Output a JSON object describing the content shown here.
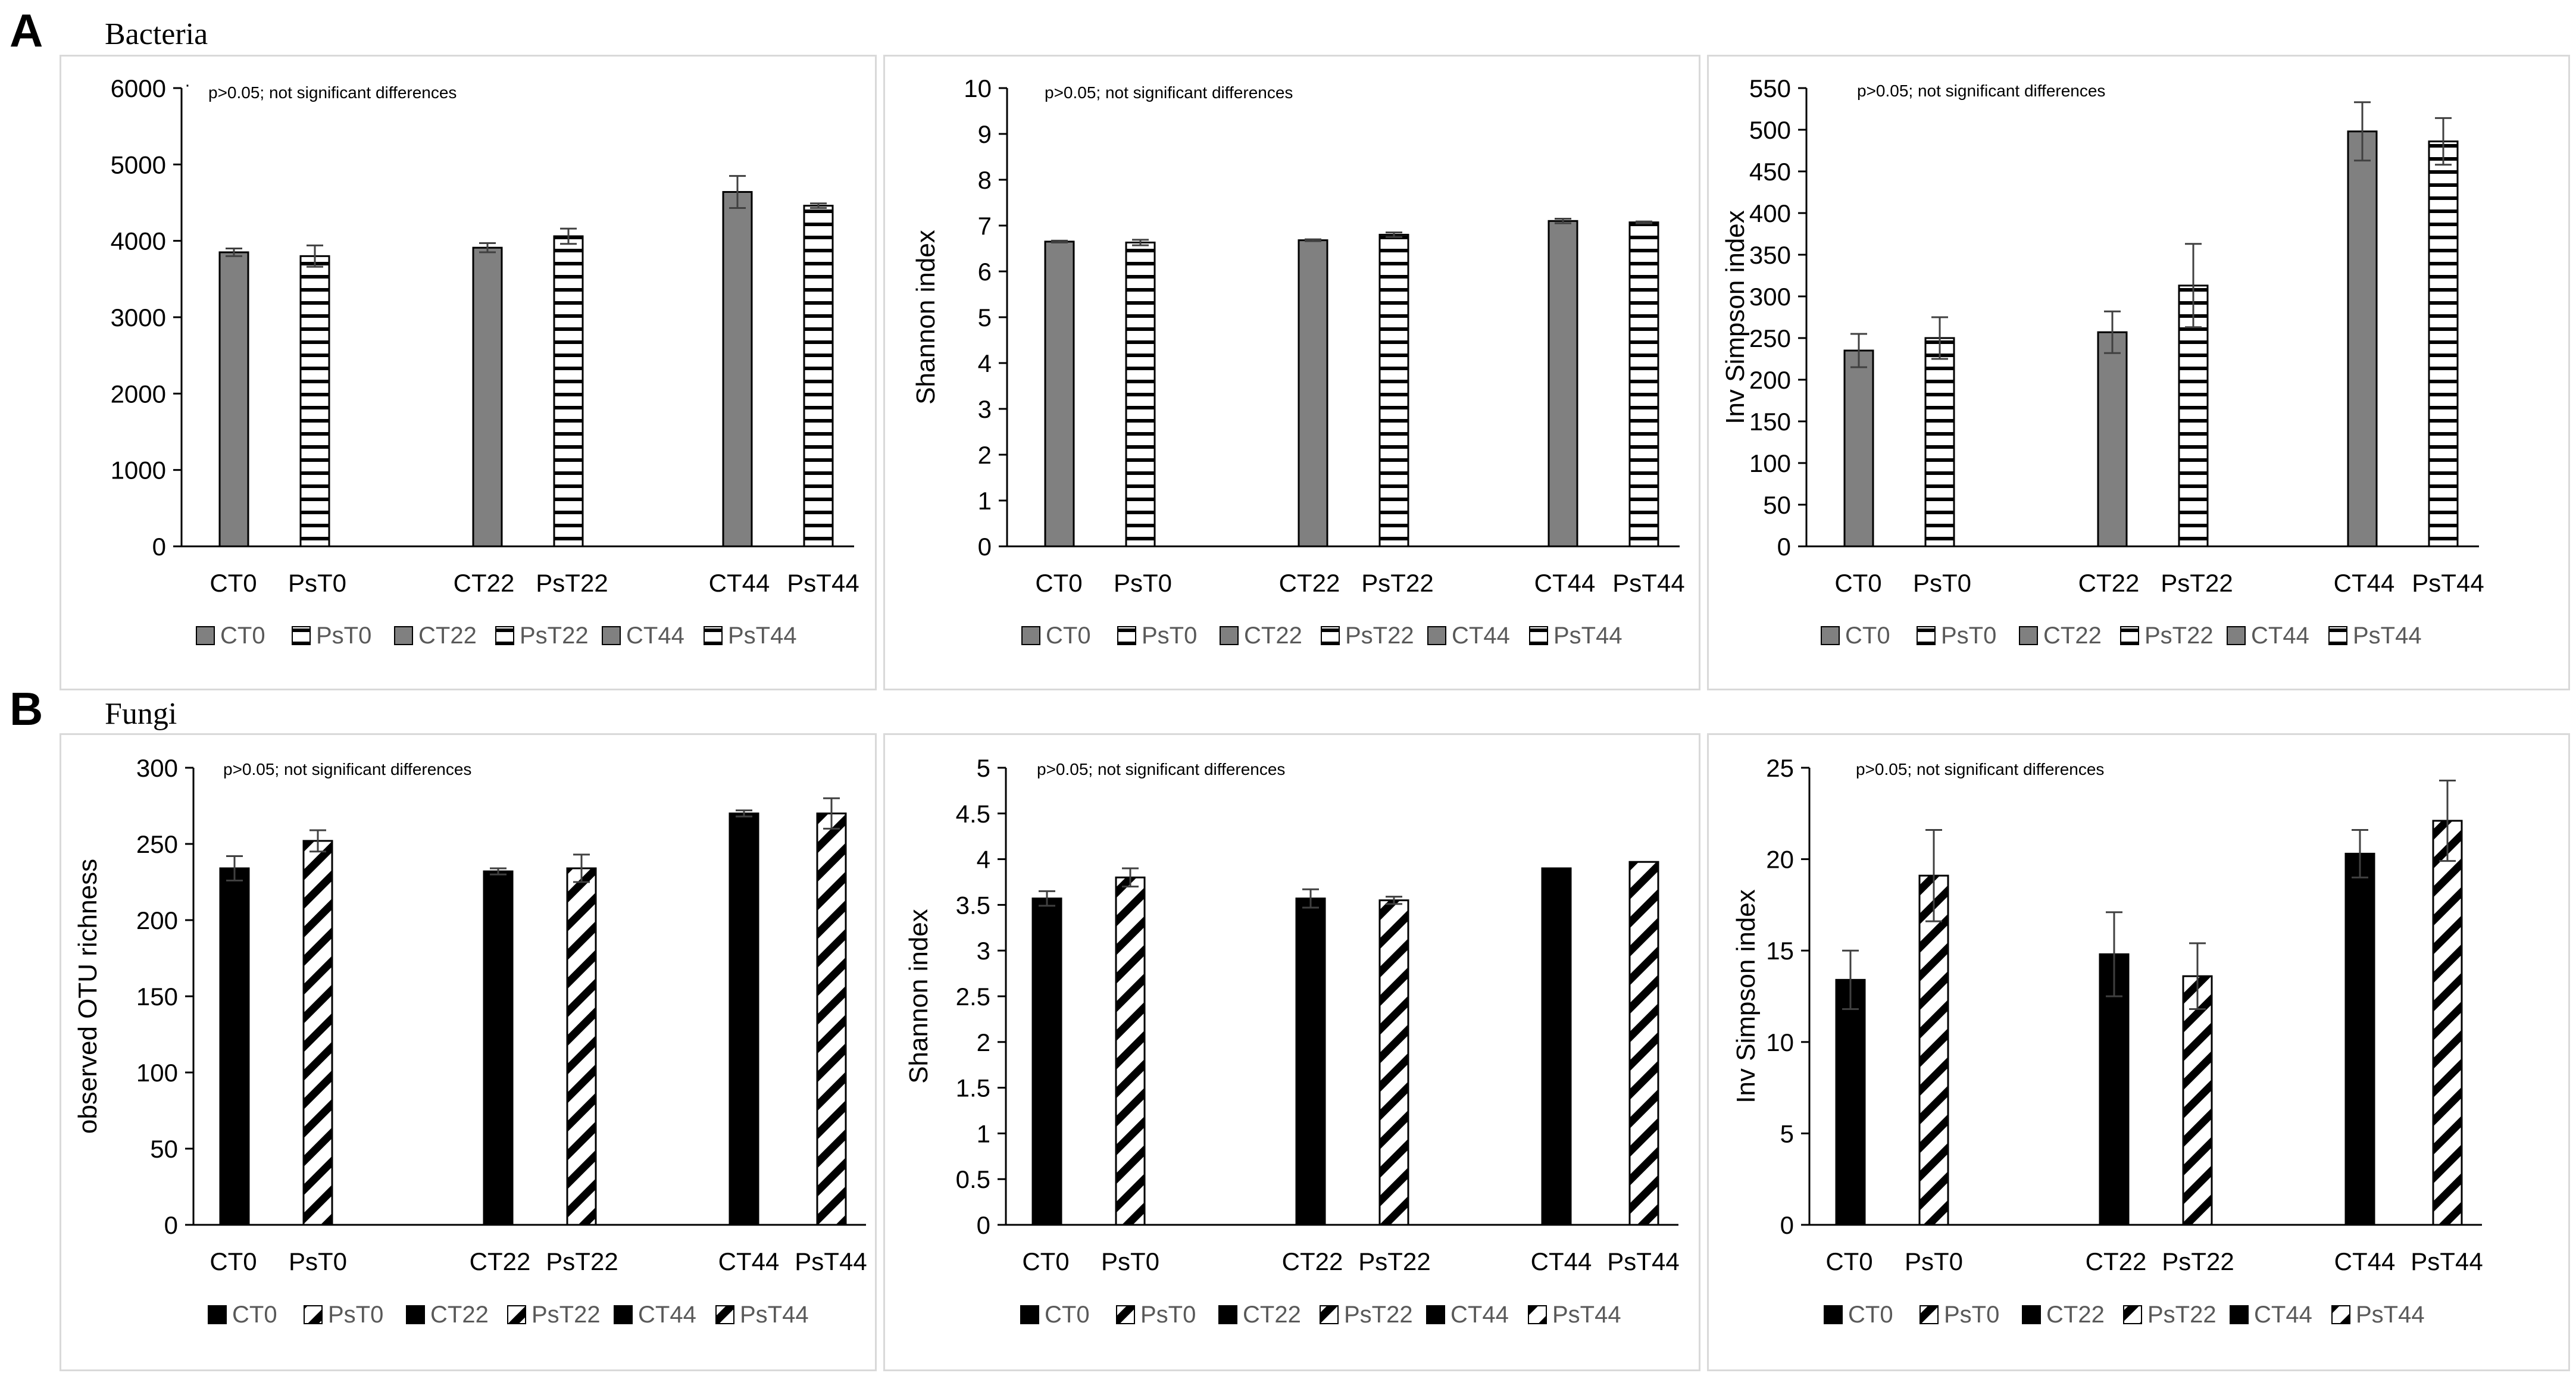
{
  "sections": [
    {
      "letter": "A",
      "title": "Bacteria"
    },
    {
      "letter": "B",
      "title": "Fungi"
    }
  ],
  "legend_labels": [
    "CT0",
    "PsT0",
    "CT22",
    "PsT22",
    "CT44",
    "PsT44"
  ],
  "colors": {
    "bacteria_fill": "#808080",
    "fungi_fill": "#000000",
    "axis": "#000000",
    "text": "#000000",
    "legend_text": "#595959",
    "border": "#d9d9d9"
  },
  "chart_data": [
    {
      "type": "bar",
      "group": "bacteria",
      "pattern": "horizontal",
      "categories": [
        "CT0",
        "PsT0",
        "CT22",
        "PsT22",
        "CT44",
        "PsT44"
      ],
      "values": [
        3850,
        3800,
        3910,
        4060,
        4640,
        4460
      ],
      "errors": [
        50,
        140,
        60,
        100,
        210,
        30
      ],
      "ylim": [
        0,
        6000
      ],
      "ytick_step": 1000,
      "yticks": [
        "0",
        "1000",
        "2000",
        "3000",
        "4000",
        "5000",
        "6000"
      ],
      "ylabel": "",
      "annotation": "p>0.05; not significant differences",
      "extra_mark": "·"
    },
    {
      "type": "bar",
      "group": "bacteria",
      "pattern": "horizontal",
      "categories": [
        "CT0",
        "PsT0",
        "CT22",
        "PsT22",
        "CT44",
        "PsT44"
      ],
      "values": [
        6.65,
        6.63,
        6.68,
        6.8,
        7.1,
        7.07
      ],
      "errors": [
        0.02,
        0.06,
        0.02,
        0.05,
        0.05,
        0.02
      ],
      "ylim": [
        0,
        10
      ],
      "ytick_step": 1,
      "yticks": [
        "0",
        "1",
        "2",
        "3",
        "4",
        "5",
        "6",
        "7",
        "8",
        "9",
        "10"
      ],
      "ylabel": "Shannon index",
      "annotation": "p>0.05; not significant differences"
    },
    {
      "type": "bar",
      "group": "bacteria",
      "pattern": "horizontal",
      "categories": [
        "CT0",
        "PsT0",
        "CT22",
        "PsT22",
        "CT44",
        "PsT44"
      ],
      "values": [
        235,
        250,
        257,
        313,
        498,
        486
      ],
      "errors": [
        20,
        25,
        25,
        50,
        35,
        28
      ],
      "ylim": [
        0,
        550
      ],
      "ytick_step": 50,
      "yticks": [
        "0",
        "50",
        "100",
        "150",
        "200",
        "250",
        "300",
        "350",
        "400",
        "450",
        "500",
        "550"
      ],
      "ylabel": "Inv Simpson index",
      "annotation": "p>0.05; not significant differences"
    },
    {
      "type": "bar",
      "group": "fungi",
      "pattern": "diagonal",
      "categories": [
        "CT0",
        "PsT0",
        "CT22",
        "PsT22",
        "CT44",
        "PsT44"
      ],
      "values": [
        234,
        252,
        232,
        234,
        270,
        270
      ],
      "errors": [
        8,
        7,
        2,
        9,
        2,
        10
      ],
      "ylim": [
        0,
        300
      ],
      "ytick_step": 50,
      "yticks": [
        "0",
        "50",
        "100",
        "150",
        "200",
        "250",
        "300"
      ],
      "ylabel": "observed OTU richness",
      "annotation": "p>0.05; not significant differences"
    },
    {
      "type": "bar",
      "group": "fungi",
      "pattern": "diagonal",
      "categories": [
        "CT0",
        "PsT0",
        "CT22",
        "PsT22",
        "CT44",
        "PsT44"
      ],
      "values": [
        3.57,
        3.8,
        3.57,
        3.55,
        3.9,
        3.97
      ],
      "errors": [
        0.08,
        0.1,
        0.1,
        0.04,
        0,
        0
      ],
      "ylim": [
        0,
        5
      ],
      "ytick_step": 0.5,
      "yticks": [
        "0",
        "0.5",
        "1",
        "1.5",
        "2",
        "2.5",
        "3",
        "3.5",
        "4",
        "4.5",
        "5"
      ],
      "ylabel": "Shannon index",
      "annotation": "p>0.05; not significant differences"
    },
    {
      "type": "bar",
      "group": "fungi",
      "pattern": "diagonal",
      "categories": [
        "CT0",
        "PsT0",
        "CT22",
        "PsT22",
        "CT44",
        "PsT44"
      ],
      "values": [
        13.4,
        19.1,
        14.8,
        13.6,
        20.3,
        22.1
      ],
      "errors": [
        1.6,
        2.5,
        2.3,
        1.8,
        1.3,
        2.2
      ],
      "ylim": [
        0,
        25
      ],
      "ytick_step": 5,
      "yticks": [
        "0",
        "5",
        "10",
        "15",
        "20",
        "25"
      ],
      "ylabel": "Inv Simpson index",
      "annotation": "p>0.05; not significant differences"
    }
  ]
}
